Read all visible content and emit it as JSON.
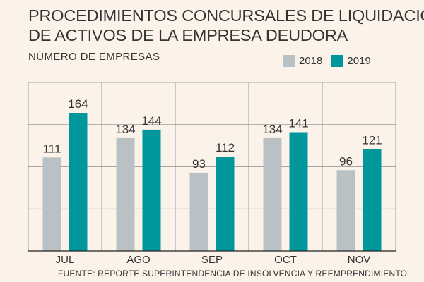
{
  "title_lines": [
    "PROCEDIMIENTOS CONCURSALES DE LIQUIDACIÓN",
    "DE ACTIVOS DE LA EMPRESA DEUDORA"
  ],
  "subtitle": "NÚMERO DE EMPRESAS",
  "source": "FUENTE: REPORTE SUPERINTENDENCIA DE INSOLVENCIA Y REEMPRENDIMIENTO",
  "colors": {
    "background": "#fbf2ea",
    "series_2018": "#b9c1c4",
    "series_2019": "#00979c",
    "text": "#333333",
    "grid": "#8a8a8a"
  },
  "chart_data": {
    "type": "bar",
    "categories": [
      "JUL",
      "AGO",
      "SEP",
      "OCT",
      "NOV"
    ],
    "series": [
      {
        "name": "2018",
        "values": [
          111,
          134,
          93,
          134,
          96
        ]
      },
      {
        "name": "2019",
        "values": [
          164,
          144,
          112,
          141,
          121
        ]
      }
    ],
    "ylabel": "NÚMERO DE EMPRESAS",
    "ylim": [
      0,
      200
    ],
    "grid": true,
    "legend": "top-right",
    "data_labels": true
  }
}
